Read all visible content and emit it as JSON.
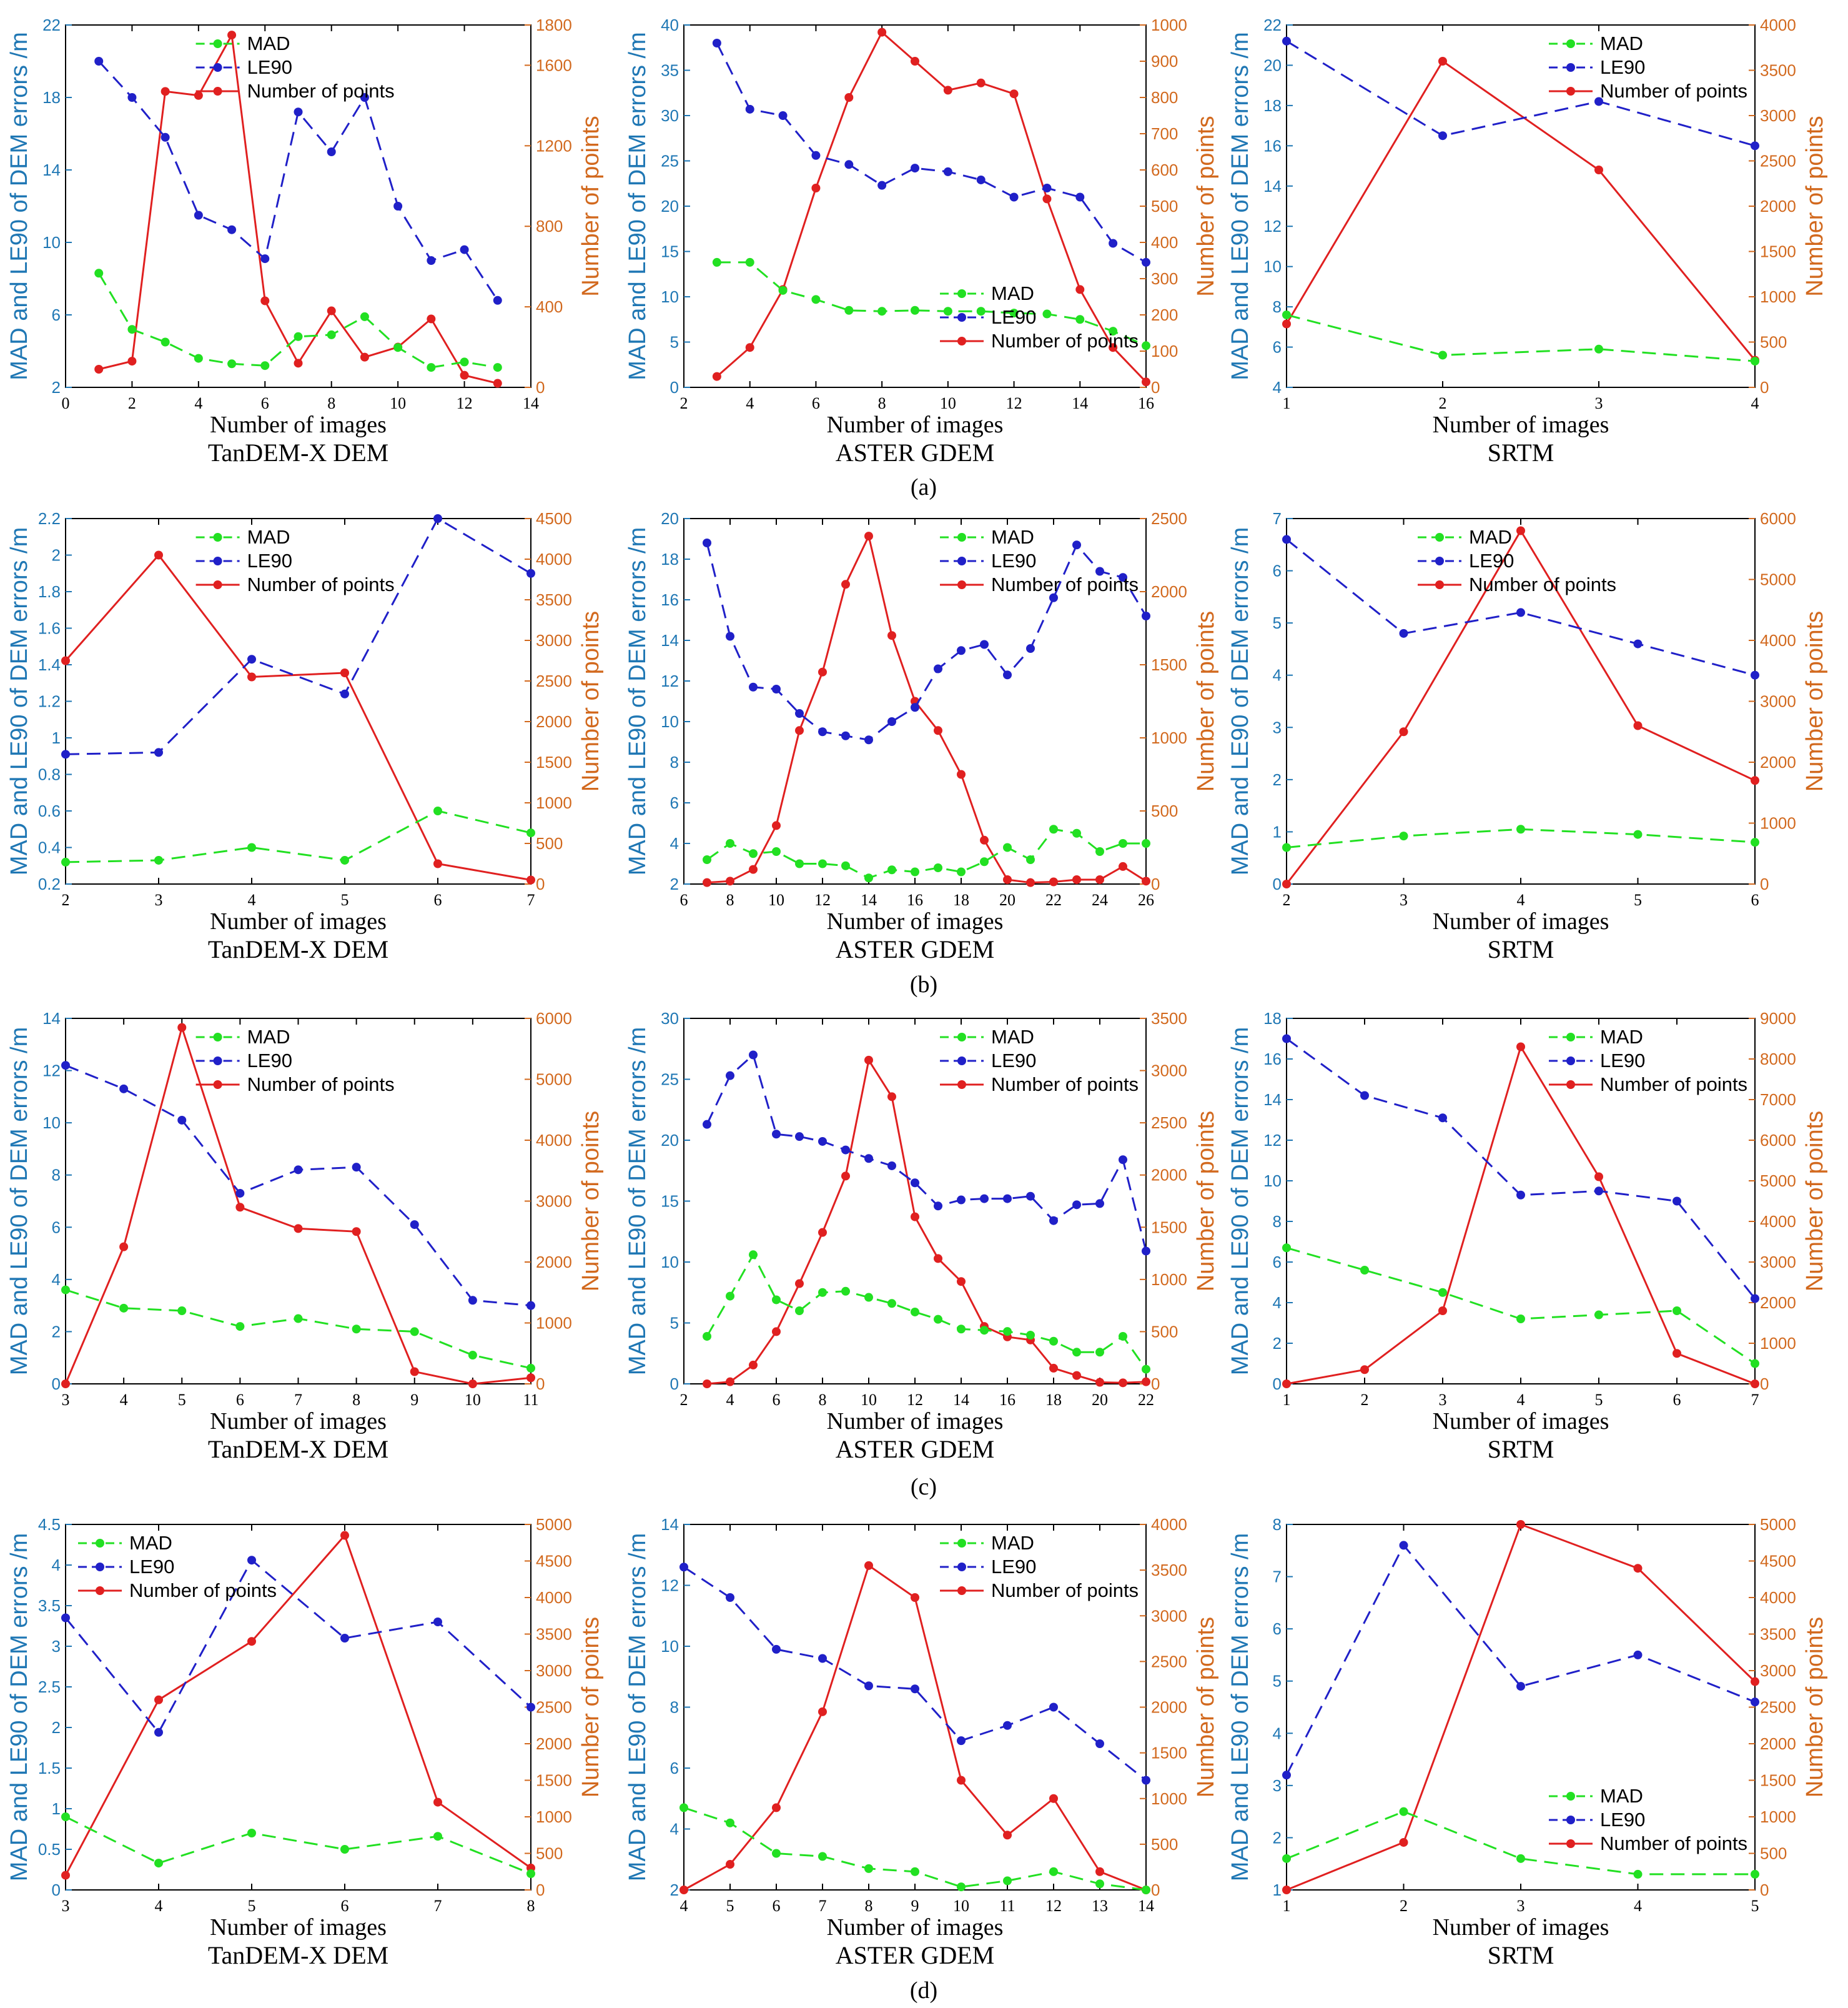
{
  "colors": {
    "mad": "#22e022",
    "le90": "#2020c8",
    "points": "#e02020",
    "left_axis": "#1f77b4",
    "right_axis": "#d2691e"
  },
  "legend": {
    "mad": "MAD",
    "le90": "LE90",
    "points": "Number of points"
  },
  "xlabel": "Number of images",
  "ylabel_left": "MAD and LE90 of DEM errors /m",
  "ylabel_right": "Number of points",
  "row_labels": [
    "(a)",
    "(b)",
    "(c)",
    "(d)"
  ],
  "chart_data": [
    {
      "type": "line",
      "row": 0,
      "col": 0,
      "title": "TanDEM-X DEM",
      "x": [
        1,
        2,
        3,
        4,
        5,
        6,
        7,
        8,
        9,
        10,
        11,
        12,
        13
      ],
      "mad": [
        8.3,
        5.2,
        4.5,
        3.6,
        3.3,
        3.2,
        4.8,
        4.9,
        5.9,
        4.2,
        3.1,
        3.4,
        3.1
      ],
      "le90": [
        20,
        18,
        15.8,
        11.5,
        10.7,
        9.1,
        17.2,
        15,
        18,
        12,
        9,
        9.6,
        6.8
      ],
      "points": [
        90,
        130,
        1470,
        1450,
        1750,
        430,
        120,
        380,
        150,
        200,
        340,
        60,
        20
      ],
      "xlim": [
        0,
        14
      ],
      "xticks": [
        0,
        2,
        4,
        6,
        8,
        10,
        12,
        14
      ],
      "ylim": [
        2,
        22
      ],
      "yticks": [
        2,
        6,
        10,
        14,
        18,
        22
      ],
      "y2lim": [
        0,
        1800
      ],
      "y2ticks": [
        0,
        400,
        800,
        1200,
        1600,
        1800
      ],
      "legend_pos": "top-center"
    },
    {
      "type": "line",
      "row": 0,
      "col": 1,
      "title": "ASTER GDEM",
      "x": [
        3,
        4,
        5,
        6,
        7,
        8,
        9,
        10,
        11,
        12,
        13,
        14,
        15,
        16
      ],
      "mad": [
        13.8,
        13.8,
        10.7,
        9.7,
        8.5,
        8.4,
        8.5,
        8.4,
        8.4,
        8.2,
        8.1,
        7.5,
        6.2,
        4.6
      ],
      "le90": [
        38,
        30.7,
        30,
        25.6,
        24.6,
        22.3,
        24.2,
        23.8,
        22.9,
        21,
        22,
        21,
        15.9,
        13.8
      ],
      "points": [
        30,
        110,
        270,
        550,
        800,
        980,
        900,
        820,
        840,
        810,
        520,
        270,
        110,
        15
      ],
      "xlim": [
        2,
        16
      ],
      "xticks": [
        2,
        4,
        6,
        8,
        10,
        12,
        14,
        16
      ],
      "ylim": [
        0,
        40
      ],
      "yticks": [
        0,
        5,
        10,
        15,
        20,
        25,
        30,
        35,
        40
      ],
      "y2lim": [
        0,
        1000
      ],
      "y2ticks": [
        0,
        100,
        200,
        300,
        400,
        500,
        600,
        700,
        800,
        900,
        1000
      ],
      "legend_pos": "bottom-right"
    },
    {
      "type": "line",
      "row": 0,
      "col": 2,
      "title": "SRTM",
      "x": [
        1,
        2,
        3,
        4
      ],
      "mad": [
        7.6,
        5.6,
        5.9,
        5.3
      ],
      "le90": [
        21.2,
        16.5,
        18.2,
        16
      ],
      "points": [
        700,
        3600,
        2400,
        300
      ],
      "xlim": [
        1,
        4
      ],
      "xticks": [
        1,
        2,
        3,
        4
      ],
      "ylim": [
        4,
        22
      ],
      "yticks": [
        4,
        6,
        8,
        10,
        12,
        14,
        16,
        18,
        20,
        22
      ],
      "y2lim": [
        0,
        4000
      ],
      "y2ticks": [
        0,
        500,
        1000,
        1500,
        2000,
        2500,
        3000,
        3500,
        4000
      ],
      "legend_pos": "top-right"
    },
    {
      "type": "line",
      "row": 1,
      "col": 0,
      "title": "TanDEM-X DEM",
      "x": [
        2,
        3,
        4,
        5,
        6,
        7
      ],
      "mad": [
        0.32,
        0.33,
        0.4,
        0.33,
        0.6,
        0.48
      ],
      "le90": [
        0.91,
        0.92,
        1.43,
        1.24,
        2.2,
        1.9
      ],
      "points": [
        2750,
        4050,
        2550,
        2600,
        250,
        50
      ],
      "xlim": [
        2,
        7
      ],
      "xticks": [
        2,
        3,
        4,
        5,
        6,
        7
      ],
      "ylim": [
        0.2,
        2.2
      ],
      "yticks": [
        0.2,
        0.4,
        0.6,
        0.8,
        1,
        1.2,
        1.4,
        1.6,
        1.8,
        2,
        2.2
      ],
      "y2lim": [
        0,
        4500
      ],
      "y2ticks": [
        0,
        500,
        1000,
        1500,
        2000,
        2500,
        3000,
        3500,
        4000,
        4500
      ],
      "legend_pos": "top-center"
    },
    {
      "type": "line",
      "row": 1,
      "col": 1,
      "title": "ASTER GDEM",
      "x": [
        7,
        8,
        9,
        10,
        11,
        12,
        13,
        14,
        15,
        16,
        17,
        18,
        19,
        20,
        21,
        22,
        23,
        24,
        25,
        26
      ],
      "mad": [
        3.2,
        4.0,
        3.5,
        3.6,
        3.0,
        3.0,
        2.9,
        2.3,
        2.7,
        2.6,
        2.8,
        2.6,
        3.1,
        3.8,
        3.2,
        4.7,
        4.5,
        3.6,
        4.0,
        4.0
      ],
      "le90": [
        18.8,
        14.2,
        11.7,
        11.6,
        10.4,
        9.5,
        9.3,
        9.1,
        10.0,
        10.7,
        12.6,
        13.5,
        13.8,
        12.3,
        13.6,
        16.1,
        18.7,
        17.4,
        17.1,
        15.2
      ],
      "points": [
        10,
        20,
        100,
        400,
        1050,
        1450,
        2050,
        2380,
        1700,
        1250,
        1050,
        750,
        300,
        30,
        10,
        15,
        30,
        30,
        120,
        20
      ],
      "xlim": [
        6,
        26
      ],
      "xticks": [
        6,
        8,
        10,
        12,
        14,
        16,
        18,
        20,
        22,
        24,
        26
      ],
      "ylim": [
        2,
        20
      ],
      "yticks": [
        2,
        4,
        6,
        8,
        10,
        12,
        14,
        16,
        18,
        20
      ],
      "y2lim": [
        0,
        2500
      ],
      "y2ticks": [
        0,
        500,
        1000,
        1500,
        2000,
        2500
      ],
      "legend_pos": "top-right"
    },
    {
      "type": "line",
      "row": 1,
      "col": 2,
      "title": "SRTM",
      "x": [
        2,
        3,
        4,
        5,
        6
      ],
      "mad": [
        0.7,
        0.92,
        1.05,
        0.95,
        0.8
      ],
      "le90": [
        6.6,
        4.8,
        5.2,
        4.6,
        4.0
      ],
      "points": [
        0,
        2500,
        5800,
        2600,
        1700
      ],
      "xlim": [
        2,
        6
      ],
      "xticks": [
        2,
        3,
        4,
        5,
        6
      ],
      "ylim": [
        0,
        7
      ],
      "yticks": [
        0,
        1,
        2,
        3,
        4,
        5,
        6,
        7
      ],
      "y2lim": [
        0,
        6000
      ],
      "y2ticks": [
        0,
        1000,
        2000,
        3000,
        4000,
        5000,
        6000
      ],
      "legend_pos": "top-center"
    },
    {
      "type": "line",
      "row": 2,
      "col": 0,
      "title": "TanDEM-X DEM",
      "x": [
        3,
        4,
        5,
        6,
        7,
        8,
        9,
        10,
        11
      ],
      "mad": [
        3.6,
        2.9,
        2.8,
        2.2,
        2.5,
        2.1,
        2.0,
        1.1,
        0.6
      ],
      "le90": [
        12.2,
        11.3,
        10.1,
        7.3,
        8.2,
        8.3,
        6.1,
        3.2,
        3.0
      ],
      "points": [
        0,
        2250,
        5850,
        2900,
        2550,
        2500,
        200,
        0,
        100
      ],
      "xlim": [
        3,
        11
      ],
      "xticks": [
        3,
        4,
        5,
        6,
        7,
        8,
        9,
        10,
        11
      ],
      "ylim": [
        0,
        14
      ],
      "yticks": [
        0,
        2,
        4,
        6,
        8,
        10,
        12,
        14
      ],
      "y2lim": [
        0,
        6000
      ],
      "y2ticks": [
        0,
        1000,
        2000,
        3000,
        4000,
        5000,
        6000
      ],
      "legend_pos": "top-center"
    },
    {
      "type": "line",
      "row": 2,
      "col": 1,
      "title": "ASTER GDEM",
      "x": [
        3,
        4,
        5,
        6,
        7,
        8,
        9,
        10,
        11,
        12,
        13,
        14,
        15,
        16,
        17,
        18,
        19,
        20,
        21,
        22
      ],
      "mad": [
        3.9,
        7.2,
        10.6,
        6.9,
        6.0,
        7.5,
        7.6,
        7.1,
        6.6,
        5.9,
        5.3,
        4.5,
        4.4,
        4.3,
        4.0,
        3.5,
        2.6,
        2.6,
        3.9,
        1.2
      ],
      "le90": [
        21.3,
        25.3,
        27.0,
        20.5,
        20.3,
        19.9,
        19.2,
        18.5,
        17.9,
        16.5,
        14.6,
        15.1,
        15.2,
        15.2,
        15.4,
        13.4,
        14.7,
        14.8,
        18.4,
        10.9
      ],
      "points": [
        0,
        20,
        180,
        500,
        960,
        1450,
        1990,
        3100,
        2750,
        1600,
        1200,
        980,
        550,
        450,
        420,
        150,
        80,
        15,
        10,
        20
      ],
      "xlim": [
        2,
        22
      ],
      "xticks": [
        2,
        4,
        6,
        8,
        10,
        12,
        14,
        16,
        18,
        20,
        22
      ],
      "ylim": [
        0,
        30
      ],
      "yticks": [
        0,
        5,
        10,
        15,
        20,
        25,
        30
      ],
      "y2lim": [
        0,
        3500
      ],
      "y2ticks": [
        0,
        500,
        1000,
        1500,
        2000,
        2500,
        3000,
        3500
      ],
      "legend_pos": "top-right"
    },
    {
      "type": "line",
      "row": 2,
      "col": 2,
      "title": "SRTM",
      "x": [
        1,
        2,
        3,
        4,
        5,
        6,
        7
      ],
      "mad": [
        6.7,
        5.6,
        4.5,
        3.2,
        3.4,
        3.6,
        1.0
      ],
      "le90": [
        17,
        14.2,
        13.1,
        9.3,
        9.5,
        9.0,
        4.2
      ],
      "points": [
        0,
        350,
        1800,
        8300,
        5100,
        750,
        0
      ],
      "xlim": [
        1,
        7
      ],
      "xticks": [
        1,
        2,
        3,
        4,
        5,
        6,
        7
      ],
      "ylim": [
        0,
        18
      ],
      "yticks": [
        0,
        2,
        4,
        6,
        8,
        10,
        12,
        14,
        16,
        18
      ],
      "y2lim": [
        0,
        9000
      ],
      "y2ticks": [
        0,
        1000,
        2000,
        3000,
        4000,
        5000,
        6000,
        7000,
        8000,
        9000
      ],
      "legend_pos": "top-right"
    },
    {
      "type": "line",
      "row": 3,
      "col": 0,
      "title": "TanDEM-X DEM",
      "x": [
        3,
        4,
        5,
        6,
        7,
        8
      ],
      "mad": [
        0.9,
        0.33,
        0.7,
        0.5,
        0.66,
        0.2
      ],
      "le90": [
        3.35,
        1.94,
        4.06,
        3.1,
        3.3,
        2.25
      ],
      "points": [
        200,
        2600,
        3400,
        4850,
        1200,
        300
      ],
      "xlim": [
        3,
        8
      ],
      "xticks": [
        3,
        4,
        5,
        6,
        7,
        8
      ],
      "ylim": [
        0,
        4.5
      ],
      "yticks": [
        0,
        0.5,
        1,
        1.5,
        2,
        2.5,
        3,
        3.5,
        4,
        4.5
      ],
      "y2lim": [
        0,
        5000
      ],
      "y2ticks": [
        0,
        500,
        1000,
        1500,
        2000,
        2500,
        3000,
        3500,
        4000,
        4500,
        5000
      ],
      "legend_pos": "top-left"
    },
    {
      "type": "line",
      "row": 3,
      "col": 1,
      "title": "ASTER GDEM",
      "x": [
        4,
        5,
        6,
        7,
        8,
        9,
        10,
        11,
        12,
        13,
        14
      ],
      "mad": [
        4.7,
        4.2,
        3.2,
        3.1,
        2.7,
        2.6,
        2.1,
        2.3,
        2.6,
        2.2,
        2.0
      ],
      "le90": [
        12.6,
        11.6,
        9.9,
        9.6,
        8.7,
        8.6,
        6.9,
        7.4,
        8.0,
        6.8,
        5.6
      ],
      "points": [
        0,
        280,
        900,
        1950,
        3550,
        3200,
        1200,
        600,
        1000,
        200,
        0
      ],
      "xlim": [
        4,
        14
      ],
      "xticks": [
        4,
        5,
        6,
        7,
        8,
        9,
        10,
        11,
        12,
        13,
        14
      ],
      "ylim": [
        2,
        14
      ],
      "yticks": [
        2,
        4,
        6,
        8,
        10,
        12,
        14
      ],
      "y2lim": [
        0,
        4000
      ],
      "y2ticks": [
        0,
        500,
        1000,
        1500,
        2000,
        2500,
        3000,
        3500,
        4000
      ],
      "legend_pos": "top-right"
    },
    {
      "type": "line",
      "row": 3,
      "col": 2,
      "title": "SRTM",
      "x": [
        1,
        2,
        3,
        4,
        5
      ],
      "mad": [
        1.6,
        2.5,
        1.6,
        1.3,
        1.3
      ],
      "le90": [
        3.2,
        7.6,
        4.9,
        5.5,
        4.6
      ],
      "points": [
        0,
        650,
        5000,
        4400,
        2850
      ],
      "xlim": [
        1,
        5
      ],
      "xticks": [
        1,
        2,
        3,
        4,
        5
      ],
      "ylim": [
        1,
        8
      ],
      "yticks": [
        1,
        2,
        3,
        4,
        5,
        6,
        7,
        8
      ],
      "y2lim": [
        0,
        5000
      ],
      "y2ticks": [
        0,
        500,
        1000,
        1500,
        2000,
        2500,
        3000,
        3500,
        4000,
        4500,
        5000
      ],
      "legend_pos": "bottom-right"
    }
  ]
}
